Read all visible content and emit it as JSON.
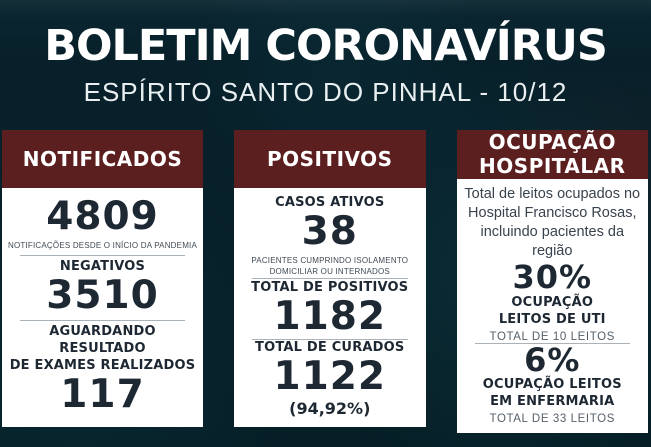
{
  "colors": {
    "background": "#061e26",
    "card_header_maroon": "#5c1f20",
    "card_body_white": "#ffffff",
    "ink_dark": "#1d2833",
    "caption_gray": "#3f4a54",
    "title_white": "#ffffff"
  },
  "header": {
    "title": "BOLETIM CORONAVÍRUS",
    "subtitle": "ESPÍRITO SANTO DO PINHAL - 10/12"
  },
  "cards": {
    "notificados": {
      "title": "NOTIFICADOS",
      "total": {
        "value": "4809",
        "caption": "NOTIFICAÇÕES DESDE O INÍCIO DA PANDEMIA"
      },
      "negativos": {
        "label": "NEGATIVOS",
        "value": "3510"
      },
      "aguardando": {
        "label": "AGUARDANDO RESULTADO\nDE EXAMES REALIZADOS",
        "value": "117"
      }
    },
    "positivos": {
      "title": "POSITIVOS",
      "ativos": {
        "label": "CASOS ATIVOS",
        "value": "38",
        "caption": "PACIENTES CUMPRINDO ISOLAMENTO\nDOMICILIAR OU INTERNADOS"
      },
      "total_positivos": {
        "label": "TOTAL DE POSITIVOS",
        "value": "1182"
      },
      "curados": {
        "label": "TOTAL DE CURADOS",
        "value": "1122",
        "percent": "(94,92%)"
      }
    },
    "ocupacao": {
      "title": "OCUPAÇÃO\nHOSPITALAR",
      "description": "Total de leitos ocupados no\nHospital Francisco Rosas,\nincluindo pacientes da região",
      "uti": {
        "value": "30%",
        "label": "OCUPAÇÃO\nLEITOS DE UTI",
        "caption": "TOTAL DE 10 LEITOS"
      },
      "enfermaria": {
        "value": "6%",
        "label": "OCUPAÇÃO LEITOS\nEM ENFERMARIA",
        "caption": "TOTAL DE 33 LEITOS"
      }
    }
  }
}
